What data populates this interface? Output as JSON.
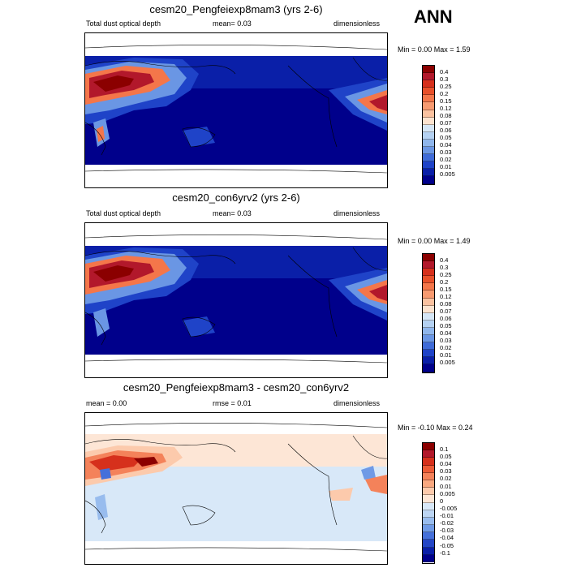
{
  "season": "ANN",
  "panels": [
    {
      "title": "cesm20_Pengfeiexp8mam3 (yrs 2-6)",
      "left_label": "Total dust optical depth",
      "center_label": "mean=   0.03",
      "right_label": "dimensionless",
      "minmax": "Min =   0.00 Max =   1.59",
      "levels": [
        "0.4",
        "0.3",
        "0.25",
        "0.2",
        "0.15",
        "0.12",
        "0.08",
        "0.07",
        "0.06",
        "0.05",
        "0.04",
        "0.03",
        "0.02",
        "0.01",
        "0.005"
      ],
      "colors": [
        "#8b0000",
        "#b2182b",
        "#d6301c",
        "#e8502a",
        "#f4764a",
        "#f89a70",
        "#fbc2a0",
        "#fde3cf",
        "#d5e6f6",
        "#b4d1f2",
        "#8fb6ec",
        "#6a96e4",
        "#3f6bd8",
        "#1f43c8",
        "#0a1fa8",
        "#00008b"
      ]
    },
    {
      "title": "cesm20_con6yrv2 (yrs 2-6)",
      "left_label": "Total dust optical depth",
      "center_label": "mean=   0.03",
      "right_label": "dimensionless",
      "minmax": "Min =   0.00 Max =   1.49",
      "levels": [
        "0.4",
        "0.3",
        "0.25",
        "0.2",
        "0.15",
        "0.12",
        "0.08",
        "0.07",
        "0.06",
        "0.05",
        "0.04",
        "0.03",
        "0.02",
        "0.01",
        "0.005"
      ],
      "colors": [
        "#8b0000",
        "#b2182b",
        "#d6301c",
        "#e8502a",
        "#f4764a",
        "#f89a70",
        "#fbc2a0",
        "#fde3cf",
        "#d5e6f6",
        "#b4d1f2",
        "#8fb6ec",
        "#6a96e4",
        "#3f6bd8",
        "#1f43c8",
        "#0a1fa8",
        "#00008b"
      ]
    },
    {
      "title": "cesm20_Pengfeiexp8mam3 - cesm20_con6yrv2",
      "left_label": "mean =   0.00",
      "center_label": "rmse =   0.01",
      "right_label": "dimensionless",
      "minmax": "Min =  -0.10 Max =   0.24",
      "levels": [
        "0.1",
        "0.05",
        "0.04",
        "0.03",
        "0.02",
        "0.01",
        "0.005",
        "0",
        "-0.005",
        "-0.01",
        "-0.02",
        "-0.03",
        "-0.04",
        "-0.05",
        "-0.1"
      ],
      "colors": [
        "#8b0000",
        "#b2182b",
        "#d6301c",
        "#ec5a36",
        "#f4825a",
        "#f9a880",
        "#fccaac",
        "#fde6d6",
        "#d8e8f8",
        "#bcd5f3",
        "#98bcee",
        "#6f9ae6",
        "#4570da",
        "#2446c6",
        "#0a1fa8",
        "#00008b"
      ]
    }
  ]
}
